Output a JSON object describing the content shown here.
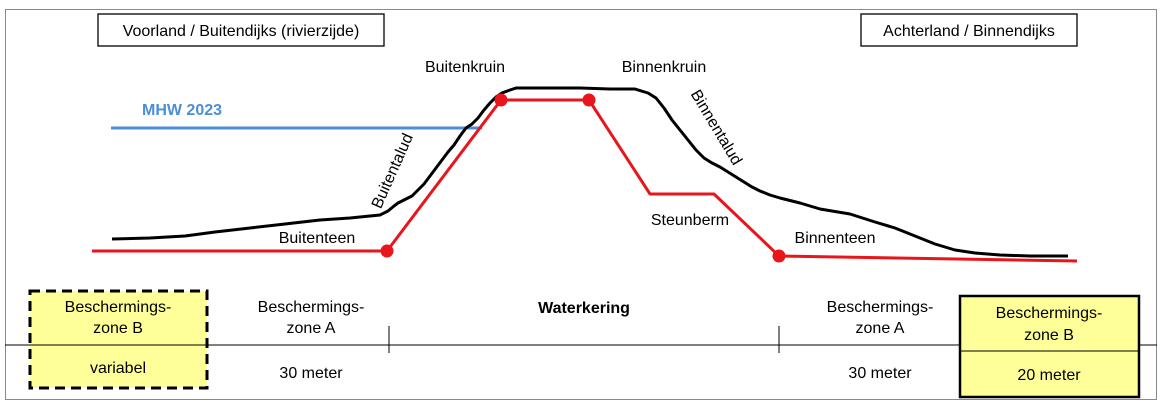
{
  "colors": {
    "terrain": "#000000",
    "profile": "#e8161b",
    "mhw": "#4a8fd8",
    "zone_fill": "#ffff99",
    "zone_border": "#000000"
  },
  "header": {
    "left_box": "Voorland / Buitendijks (rivierzijde)",
    "right_box": "Achterland / Binnendijks"
  },
  "profile_labels": {
    "buitenkruin": "Buitenkruin",
    "binnenkruin": "Binnenkruin",
    "mhw": "MHW 2023",
    "buitentalud": "Buitentalud",
    "binnentalud": "Binnentalud",
    "buitenteen": "Buitenteen",
    "steunberm": "Steunberm",
    "binnenteen": "Binnenteen"
  },
  "zones": {
    "left_b": {
      "title_line1": "Beschermings-",
      "title_line2": "zone B",
      "width_text": "variabel"
    },
    "left_a": {
      "title_line1": "Beschermings-",
      "title_line2": "zone A",
      "width_text": "30 meter"
    },
    "waterkering": {
      "title": "Waterkering"
    },
    "right_a": {
      "title_line1": "Beschermings-",
      "title_line2": "zone A",
      "width_text": "30 meter"
    },
    "right_b": {
      "title_line1": "Beschermings-",
      "title_line2": "zone B",
      "width_text": "20 meter"
    }
  }
}
